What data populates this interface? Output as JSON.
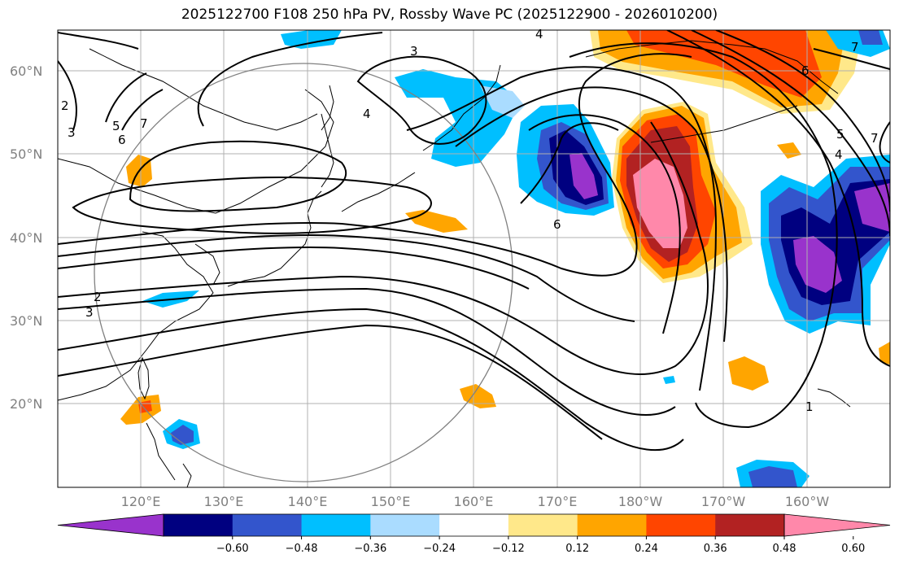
{
  "title": "2025122700 F108 250 hPa PV, Rossby Wave PC (2025122900 - 2026010200)",
  "lat_labels": [
    "60°N",
    "50°N",
    "40°N",
    "30°N",
    "20°N"
  ],
  "lon_labels": [
    "120°E",
    "130°E",
    "140°E",
    "150°E",
    "160°E",
    "170°E",
    "180°W",
    "170°W",
    "160°W"
  ],
  "colorbar": {
    "colors": [
      "#9933cc",
      "#000080",
      "#3355cc",
      "#00bfff",
      "#aadcff",
      "#ffffff",
      "#ffe88a",
      "#ffa500",
      "#ff4500",
      "#b22222",
      "#ff88aa"
    ],
    "ticks": [
      "−0.60",
      "−0.48",
      "−0.36",
      "−0.24",
      "−0.12",
      "0.12",
      "0.24",
      "0.36",
      "0.48",
      "0.60"
    ]
  },
  "contour_labels": [
    "4",
    "3",
    "7",
    "2",
    "5",
    "6",
    "7",
    "4",
    "6",
    "6",
    "5",
    "4",
    "3",
    "2",
    "3",
    "1",
    "7"
  ],
  "colors": {
    "grid": "#b0b0b0",
    "contour": "#000000",
    "coast": "#000000",
    "circle": "#808080"
  }
}
